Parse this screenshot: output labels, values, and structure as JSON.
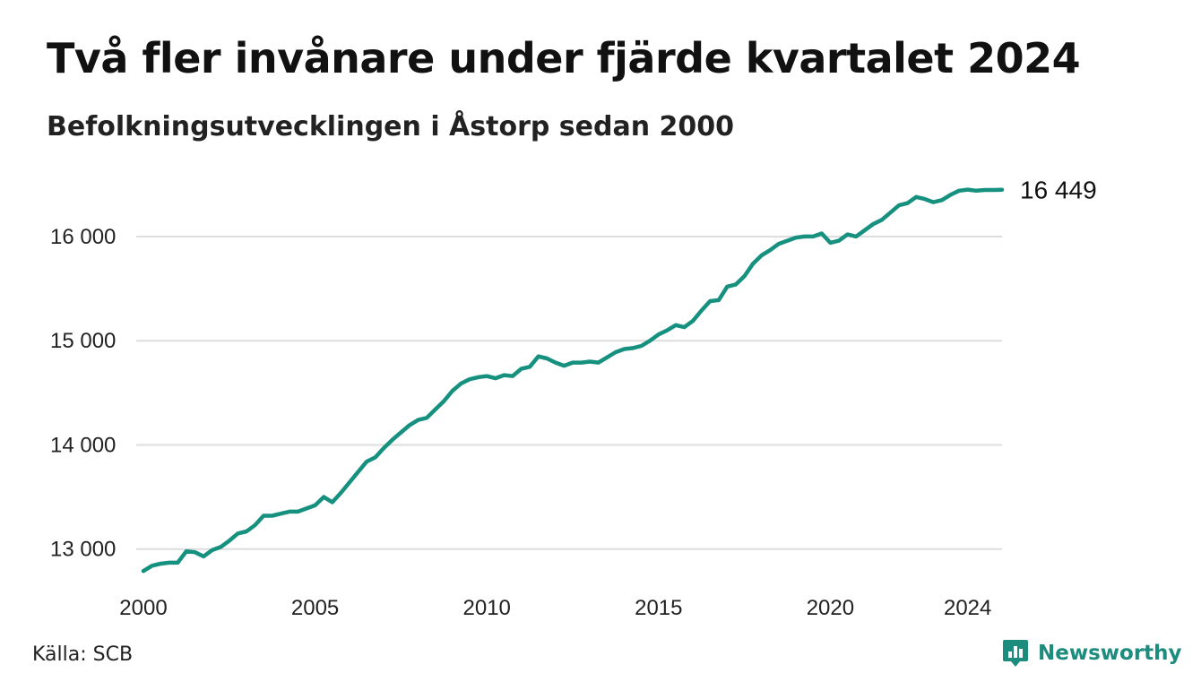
{
  "header": {
    "title": "Två fler invånare under fjärde kvartalet 2024",
    "subtitle": "Befolkningsutvecklingen i Åstorp sedan 2000"
  },
  "footer": {
    "source": "Källa: SCB",
    "brand": "Newsworthy",
    "brand_icon": "newsworthy-logo-icon"
  },
  "colors": {
    "line": "#17917f",
    "grid": "#dddddd",
    "brand": "#1c8c7e"
  },
  "chart_data": {
    "type": "line",
    "title": "Två fler invånare under fjärde kvartalet 2024",
    "subtitle": "Befolkningsutvecklingen i Åstorp sedan 2000",
    "xlabel": "",
    "ylabel": "",
    "x_range": [
      2000.0,
      2025.0
    ],
    "ylim": [
      12800,
      16550
    ],
    "y_ticks": [
      13000,
      14000,
      15000,
      16000
    ],
    "y_tick_labels": [
      "13 000",
      "14 000",
      "15 000",
      "16 000"
    ],
    "x_ticks": [
      2000,
      2005,
      2010,
      2015,
      2020,
      2024
    ],
    "x_tick_labels": [
      "2000",
      "2005",
      "2010",
      "2015",
      "2020",
      "2024"
    ],
    "grid": "horizontal",
    "end_label": "16 449",
    "series": [
      {
        "x": [
          2000.0,
          2000.25,
          2000.5,
          2000.75,
          2001.0,
          2001.25,
          2001.5,
          2001.75,
          2002.0,
          2002.25,
          2002.5,
          2002.75,
          2003.0,
          2003.25,
          2003.5,
          2003.75,
          2004.0,
          2004.25,
          2004.5,
          2004.75,
          2005.0,
          2005.25,
          2005.5,
          2005.75,
          2006.0,
          2006.25,
          2006.5,
          2006.75,
          2007.0,
          2007.25,
          2007.5,
          2007.75,
          2008.0,
          2008.25,
          2008.5,
          2008.75,
          2009.0,
          2009.25,
          2009.5,
          2009.75,
          2010.0,
          2010.25,
          2010.5,
          2010.75,
          2011.0,
          2011.25,
          2011.5,
          2011.75,
          2012.0,
          2012.25,
          2012.5,
          2012.75,
          2013.0,
          2013.25,
          2013.5,
          2013.75,
          2014.0,
          2014.25,
          2014.5,
          2014.75,
          2015.0,
          2015.25,
          2015.5,
          2015.75,
          2016.0,
          2016.25,
          2016.5,
          2016.75,
          2017.0,
          2017.25,
          2017.5,
          2017.75,
          2018.0,
          2018.25,
          2018.5,
          2018.75,
          2019.0,
          2019.25,
          2019.5,
          2019.75,
          2020.0,
          2020.25,
          2020.5,
          2020.75,
          2021.0,
          2021.25,
          2021.5,
          2021.75,
          2022.0,
          2022.25,
          2022.5,
          2022.75,
          2023.0,
          2023.25,
          2023.5,
          2023.75,
          2024.0,
          2024.25,
          2024.5,
          2024.75,
          2025.0
        ],
        "values": [
          12790,
          12840,
          12860,
          12870,
          12870,
          12980,
          12970,
          12930,
          12990,
          13020,
          13080,
          13150,
          13170,
          13230,
          13320,
          13320,
          13340,
          13360,
          13360,
          13390,
          13420,
          13500,
          13450,
          13540,
          13640,
          13740,
          13840,
          13880,
          13970,
          14050,
          14120,
          14190,
          14240,
          14260,
          14340,
          14420,
          14520,
          14590,
          14630,
          14650,
          14660,
          14640,
          14670,
          14660,
          14730,
          14750,
          14850,
          14830,
          14790,
          14760,
          14790,
          14790,
          14800,
          14790,
          14840,
          14890,
          14920,
          14930,
          14950,
          15000,
          15060,
          15100,
          15150,
          15130,
          15190,
          15290,
          15380,
          15390,
          15520,
          15540,
          15620,
          15740,
          15820,
          15870,
          15930,
          15960,
          15990,
          16000,
          16000,
          16030,
          15940,
          15960,
          16020,
          16000,
          16060,
          16120,
          16160,
          16230,
          16300,
          16320,
          16380,
          16360,
          16330,
          16350,
          16400,
          16440,
          16450,
          16440,
          16447,
          16447,
          16449
        ]
      }
    ]
  }
}
